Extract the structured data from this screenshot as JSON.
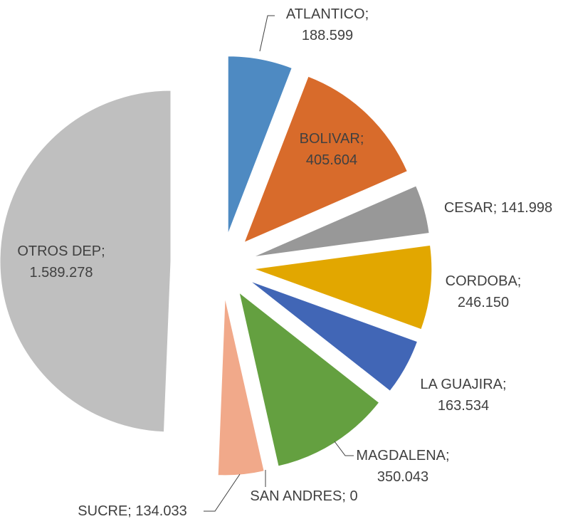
{
  "chart_data": {
    "type": "pie",
    "values": [
      188599,
      405604,
      141998,
      246150,
      163534,
      350043,
      0,
      134033,
      1589278
    ],
    "value_labels": [
      "ATLANTICO; 188.599",
      "BOLIVAR; 405.604",
      "CESAR; 141.998",
      "CORDOBA; 246.150",
      "LA GUAJIRA; 163.534",
      "MAGDALENA; 350.043",
      "SAN ANDRES; 0",
      "SUCRE; 134.033",
      "OTROS DEP; 1.589.278"
    ],
    "colors": [
      "#4e8ac2",
      "#d86b2b",
      "#989898",
      "#e2a700",
      "#4166b6",
      "#64a040",
      "#7f7f7f",
      "#f1a98a",
      "#bfbfbf"
    ]
  }
}
